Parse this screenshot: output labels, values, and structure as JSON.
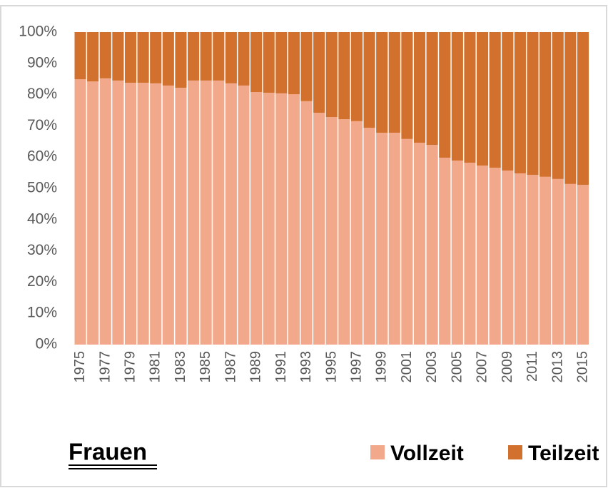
{
  "chart_data": {
    "type": "stacked_bar",
    "title": "Frauen",
    "categories": [
      "1975",
      null,
      "1977",
      null,
      "1979",
      null,
      "1981",
      null,
      "1983",
      null,
      "1985",
      null,
      "1987",
      null,
      "1989",
      null,
      "1991",
      null,
      "1993",
      null,
      "1995",
      null,
      "1997",
      null,
      "1999",
      null,
      "2001",
      null,
      "2003",
      null,
      "2005",
      null,
      "2007",
      null,
      "2009",
      null,
      "2011",
      null,
      "2013",
      null,
      "2015"
    ],
    "series": [
      {
        "name": "Vollzeit",
        "color": "#f2a98b",
        "values": [
          84.9,
          84.2,
          85.2,
          84.5,
          83.8,
          83.8,
          83.6,
          82.9,
          82.2,
          84.5,
          84.5,
          84.5,
          83.6,
          82.9,
          80.8,
          80.6,
          80.4,
          80.1,
          77.9,
          74.2,
          72.8,
          72.1,
          71.5,
          69.4,
          67.8,
          67.8,
          65.8,
          64.6,
          63.9,
          59.8,
          58.9,
          58.2,
          57.3,
          56.6,
          55.7,
          54.8,
          54.3,
          53.7,
          53.0,
          51.4,
          51.1
        ]
      },
      {
        "name": "Teilzeit",
        "color": "#d2702e",
        "values": [
          15.1,
          15.8,
          14.8,
          15.5,
          16.2,
          16.2,
          16.4,
          17.1,
          17.8,
          15.5,
          15.5,
          15.5,
          16.4,
          17.1,
          19.2,
          19.4,
          19.6,
          19.9,
          22.1,
          25.8,
          27.2,
          27.9,
          28.5,
          30.6,
          32.2,
          32.2,
          34.2,
          35.4,
          36.1,
          40.2,
          41.1,
          41.8,
          42.7,
          43.4,
          44.3,
          45.2,
          45.7,
          46.3,
          47.0,
          48.6,
          48.9
        ]
      }
    ],
    "ylim": [
      0,
      100
    ],
    "yticks": [
      {
        "value": 0,
        "label": "0%"
      },
      {
        "value": 10,
        "label": "10%"
      },
      {
        "value": 20,
        "label": "20%"
      },
      {
        "value": 30,
        "label": "30%"
      },
      {
        "value": 40,
        "label": "40%"
      },
      {
        "value": 50,
        "label": "50%"
      },
      {
        "value": 60,
        "label": "60%"
      },
      {
        "value": 70,
        "label": "70%"
      },
      {
        "value": 80,
        "label": "80%"
      },
      {
        "value": 90,
        "label": "90%"
      },
      {
        "value": 100,
        "label": "100%"
      }
    ],
    "legend": "bottom-right"
  }
}
